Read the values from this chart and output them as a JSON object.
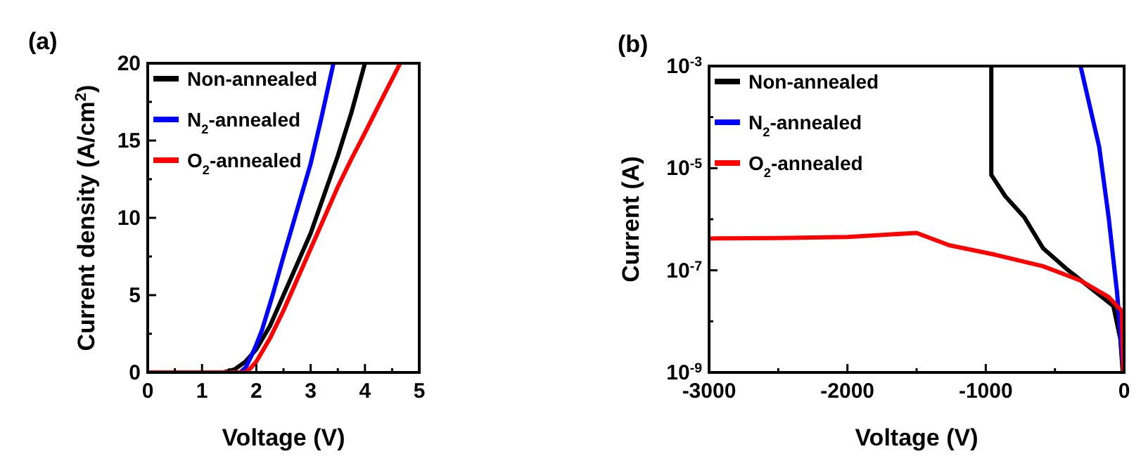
{
  "chart_data": [
    {
      "type": "line",
      "title": "(a)",
      "xlabel": "Voltage (V)",
      "ylabel": "Current density (A/cm$^{2}$)",
      "legend": "top left",
      "xlim": [
        0,
        5
      ],
      "ylim": [
        0,
        20
      ],
      "xticks": [
        0,
        {
          "value": 0.5,
          "label": null
        },
        1,
        {
          "value": 1.5,
          "label": null
        },
        2,
        {
          "value": 2.5,
          "label": null
        },
        3,
        {
          "value": 3.5,
          "label": null
        },
        4,
        {
          "value": 4.5,
          "label": null
        },
        5
      ],
      "yticks": [
        0,
        {
          "value": 2.5,
          "label": null
        },
        5,
        {
          "value": 7.5,
          "label": null
        },
        10,
        {
          "value": 12.5,
          "label": null
        },
        15,
        {
          "value": 17.5,
          "label": null
        },
        20
      ],
      "series": [
        {
          "name": "Non-annealed",
          "color": "#000000",
          "x": [
            0,
            1,
            1.4,
            1.6,
            1.8,
            2,
            2.25,
            2.5,
            2.75,
            3,
            3.25,
            3.5,
            3.75,
            4
          ],
          "values": [
            0,
            0,
            0,
            0.2,
            0.7,
            1.5,
            3,
            5,
            7,
            9,
            11.5,
            14,
            16.8,
            20
          ]
        },
        {
          "name": "N$_{2}$-annealed",
          "color": "#0000ff",
          "x": [
            0,
            1,
            1.7,
            1.8,
            1.9,
            2,
            2.1,
            2.3,
            2.5,
            2.75,
            3,
            3.2,
            3.42
          ],
          "values": [
            0,
            0,
            0,
            0.3,
            1,
            1.8,
            2.7,
            5,
            7.5,
            10.5,
            13.5,
            16.5,
            20
          ]
        },
        {
          "name": "O$_{2}$-annealed",
          "color": "#ff0000",
          "x": [
            0,
            1,
            1.8,
            1.9,
            2,
            2.25,
            2.5,
            2.75,
            3,
            3.25,
            3.5,
            3.75,
            4,
            4.3,
            4.65
          ],
          "values": [
            0,
            0,
            0,
            0.3,
            0.7,
            2.2,
            4,
            6,
            8,
            10,
            12,
            13.8,
            15.5,
            17.6,
            20
          ]
        }
      ]
    },
    {
      "type": "line",
      "title": "(b)",
      "xlabel": "Voltage (V)",
      "ylabel": "Current (A)",
      "legend": "top left",
      "log": "y",
      "xlim": [
        -3000,
        0
      ],
      "ylim": [
        1e-09,
        0.001
      ],
      "xticks": [
        -3000,
        {
          "value": -2500,
          "label": null
        },
        -2000,
        {
          "value": -1500,
          "label": null
        },
        -1000,
        {
          "value": -500,
          "label": null
        },
        0
      ],
      "yticks": [
        {
          "value": 1e-09,
          "label": "10$^{-9}$"
        },
        {
          "value": 1e-08,
          "label": null
        },
        {
          "value": 1e-07,
          "label": "10$^{-7}$"
        },
        {
          "value": 1e-06,
          "label": null
        },
        {
          "value": 1e-05,
          "label": "10$^{-5}$"
        },
        {
          "value": 0.0001,
          "label": null
        },
        {
          "value": 0.001,
          "label": "10$^{-3}$"
        }
      ],
      "series": [
        {
          "name": "Non-annealed",
          "color": "#000000",
          "x": [
            -960,
            -960,
            -858,
            -722,
            -586,
            -417,
            -247,
            -78,
            -27,
            -10
          ],
          "values": [
            0.001,
            7.4e-06,
            2.8e-06,
            1.1e-06,
            2.7e-07,
            1.07e-07,
            4.6e-08,
            2e-08,
            4.5e-09,
            1e-09
          ]
        },
        {
          "name": "N$_{2}$-annealed",
          "color": "#0000ff",
          "x": [
            -315,
            -180,
            -112,
            -51,
            -10
          ],
          "values": [
            0.001,
            2.6e-05,
            1.1e-06,
            3.7e-08,
            1.5e-09
          ]
        },
        {
          "name": "O$_{2}$-annealed",
          "color": "#ff0000",
          "x": [
            -3000,
            -2500,
            -2000,
            -1500,
            -1264,
            -925,
            -586,
            -315,
            -112,
            -17,
            -5
          ],
          "values": [
            4.2e-07,
            4.3e-07,
            4.5e-07,
            5.4e-07,
            3.1e-07,
            2e-07,
            1.2e-07,
            6.3e-08,
            3e-08,
            1.6e-08,
            1e-09
          ]
        }
      ]
    }
  ]
}
